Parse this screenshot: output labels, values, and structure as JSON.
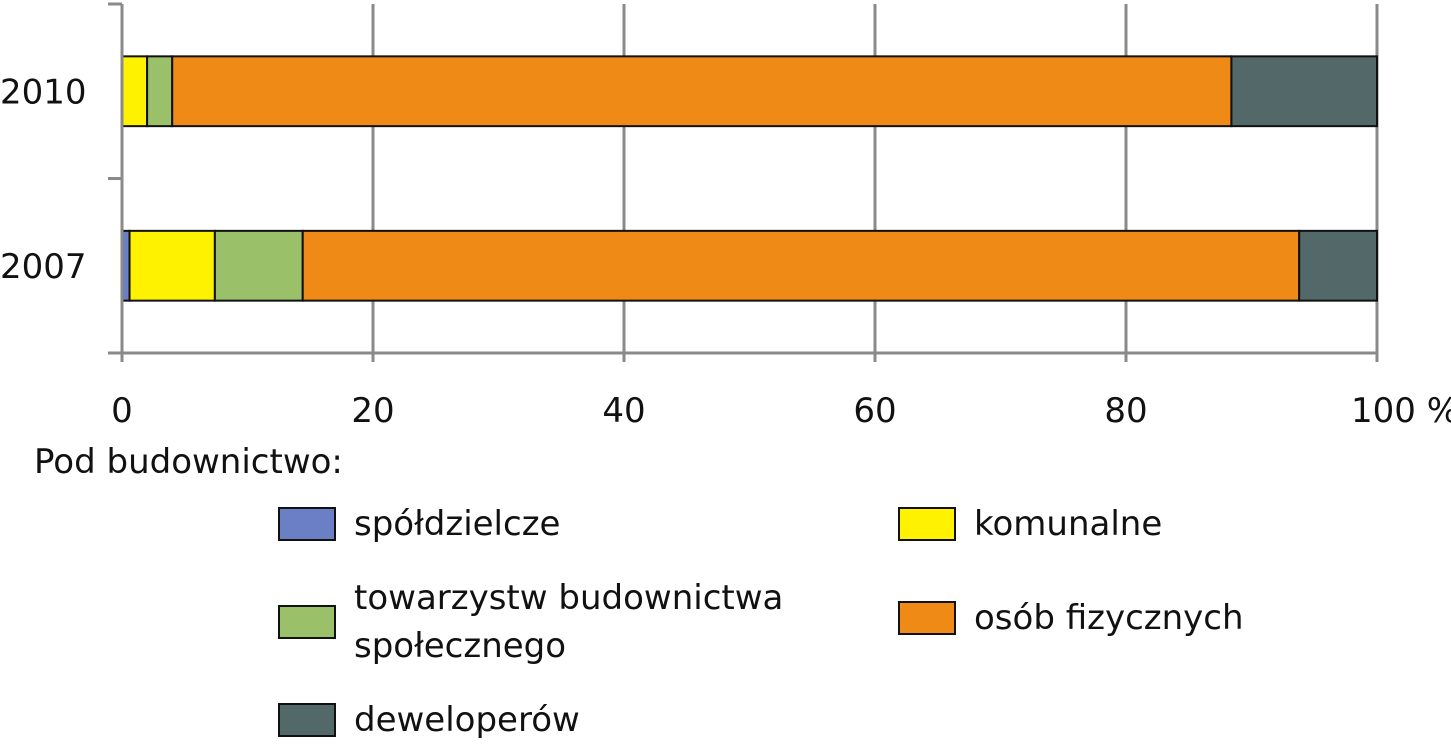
{
  "chart_data": {
    "type": "bar",
    "orientation": "horizontal",
    "stacked": true,
    "categories": [
      "2010",
      "2007"
    ],
    "series": [
      {
        "name": "spółdzielcze",
        "color": "#6b7fc4",
        "values": [
          0,
          0.6
        ]
      },
      {
        "name": "komunalne",
        "color": "#fff200",
        "values": [
          2.0,
          6.8
        ]
      },
      {
        "name": "towarzystw budownictwa społecznego",
        "color": "#9bc06a",
        "values": [
          2.0,
          7.0
        ]
      },
      {
        "name": "osób fizycznych",
        "color": "#ef8a17",
        "values": [
          84.4,
          79.4
        ]
      },
      {
        "name": "deweloperów",
        "color": "#536868",
        "values": [
          11.6,
          6.2
        ]
      }
    ],
    "xlim": [
      0,
      100
    ],
    "xticks": [
      0,
      20,
      40,
      60,
      80,
      100
    ],
    "xtick_labels": [
      "0",
      "20",
      "40",
      "60",
      "80",
      "100 %"
    ],
    "grid": true,
    "legend_placement": "bottom"
  },
  "legend": {
    "title": "Pod budownictwo:",
    "items": [
      {
        "label_lines": [
          "spółdzielcze"
        ],
        "color": "#6b7fc4"
      },
      {
        "label_lines": [
          "komunalne"
        ],
        "color": "#fff200"
      },
      {
        "label_lines": [
          "towarzystw budownictwa",
          "społecznego"
        ],
        "color": "#9bc06a"
      },
      {
        "label_lines": [
          "osób fizycznych"
        ],
        "color": "#ef8a17"
      },
      {
        "label_lines": [
          "deweloperów"
        ],
        "color": "#536868"
      }
    ]
  }
}
